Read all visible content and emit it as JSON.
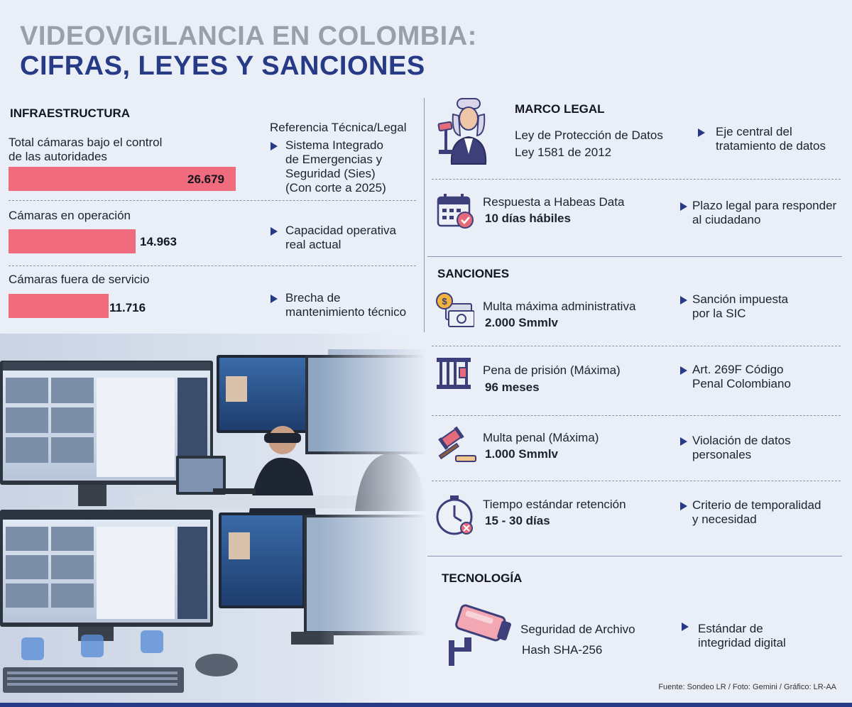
{
  "title": {
    "line1": "VIDEOVIGILANCIA EN COLOMBIA:",
    "line2": "CIFRAS, LEYES Y SANCIONES"
  },
  "infraestructura": {
    "heading": "INFRAESTRUCTURA",
    "reference_heading": "Referencia Técnica/Legal",
    "items": [
      {
        "label_lines": [
          "Total cámaras bajo el control",
          "de las autoridades"
        ],
        "value": "26.679",
        "value_number": 26679,
        "note_lines": [
          "Sistema Integrado",
          "de Emergencias y",
          "Seguridad (Sies)",
          "(Con corte a 2025)"
        ]
      },
      {
        "label_lines": [
          "Cámaras en operación"
        ],
        "value": "14.963",
        "value_number": 14963,
        "note_lines": [
          "Capacidad operativa",
          "real actual"
        ]
      },
      {
        "label_lines": [
          "Cámaras fuera de servicio"
        ],
        "value": "11.716",
        "value_number": 11716,
        "note_lines": [
          "Brecha de",
          "mantenimiento técnico"
        ]
      }
    ],
    "bar_color": "#ef6b7d"
  },
  "marco_legal": {
    "heading": "MARCO LEGAL",
    "items": [
      {
        "icon": "judge-icon",
        "label": "Ley de Protección de Datos",
        "value": "Ley 1581 de 2012",
        "note_lines": [
          "Eje central del",
          "tratamiento de datos"
        ]
      },
      {
        "icon": "calendar-check-icon",
        "label": "Respuesta a Habeas Data",
        "value": "10 días hábiles",
        "note_lines": [
          "Plazo legal para responder",
          "al ciudadano"
        ]
      }
    ]
  },
  "sanciones": {
    "heading": "SANCIONES",
    "items": [
      {
        "icon": "money-icon",
        "label": "Multa máxima administrativa",
        "value": "2.000 Smmlv",
        "note_lines": [
          "Sanción impuesta",
          "por la SIC"
        ]
      },
      {
        "icon": "prison-bars-icon",
        "label": "Pena de prisión (Máxima)",
        "value": "96 meses",
        "note_lines": [
          "Art. 269F Código",
          "Penal Colombiano"
        ]
      },
      {
        "icon": "gavel-icon",
        "label": "Multa penal (Máxima)",
        "value": "1.000 Smmlv",
        "note_lines": [
          "Violación de datos",
          "personales"
        ]
      },
      {
        "icon": "clock-icon",
        "label": "Tiempo estándar retención",
        "value": "15 - 30 días",
        "note_lines": [
          "Criterio de temporalidad",
          "y necesidad"
        ]
      }
    ]
  },
  "tecnologia": {
    "heading": "TECNOLOGÍA",
    "icon": "security-camera-icon",
    "label": "Seguridad de Archivo",
    "value": "Hash SHA-256",
    "note_lines": [
      "Estándar de",
      "integridad digital"
    ]
  },
  "source": "Fuente: Sondeo LR / Foto: Gemini / Gráfico: LR-AA",
  "colors": {
    "title_gray": "#9aa0aa",
    "title_blue": "#263a86",
    "accent_blue": "#263a86",
    "background": "#e9eef7"
  }
}
